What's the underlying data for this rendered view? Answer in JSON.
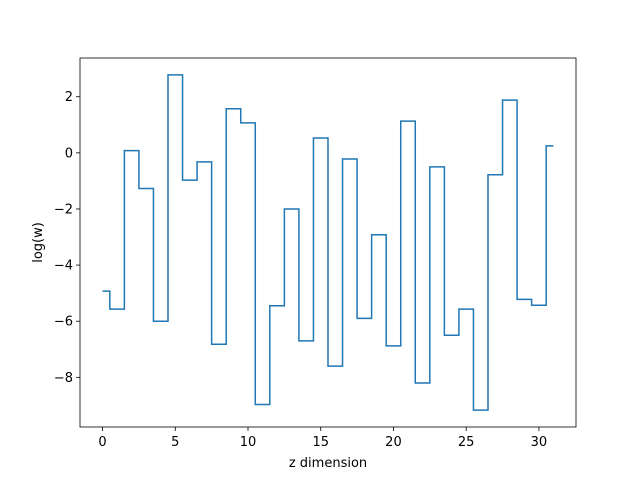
{
  "chart_data": {
    "type": "line",
    "drawstyle": "steps-mid",
    "xlabel": "z dimension",
    "ylabel": "log(w)",
    "x": [
      0,
      1,
      2,
      3,
      4,
      5,
      6,
      7,
      8,
      9,
      10,
      11,
      12,
      13,
      14,
      15,
      16,
      17,
      18,
      19,
      20,
      21,
      22,
      23,
      24,
      25,
      26,
      27,
      28,
      29,
      30,
      31
    ],
    "series": [
      {
        "color": "#1f77b4",
        "values": [
          -4.93,
          -5.57,
          0.08,
          -1.27,
          -6.0,
          2.78,
          -0.97,
          -0.32,
          -6.82,
          1.57,
          1.07,
          -8.97,
          -5.45,
          -2.0,
          -6.7,
          0.53,
          -7.6,
          -0.22,
          -5.9,
          -2.92,
          -6.88,
          1.13,
          -8.2,
          -0.5,
          -6.5,
          -5.57,
          -9.17,
          -0.78,
          1.88,
          -5.22,
          -5.43,
          0.25
        ]
      }
    ],
    "xlim": [
      -1.55,
      32.55
    ],
    "ylim": [
      -9.77,
      3.38
    ],
    "xticks": [
      0,
      5,
      10,
      15,
      20,
      25,
      30
    ],
    "yticks": [
      -8,
      -6,
      -4,
      -2,
      0,
      2
    ],
    "xtick_labels": [
      "0",
      "5",
      "10",
      "15",
      "20",
      "25",
      "30"
    ],
    "ytick_labels": [
      "−8",
      "−6",
      "−4",
      "−2",
      "0",
      "2"
    ],
    "grid": false,
    "legend": "none"
  }
}
